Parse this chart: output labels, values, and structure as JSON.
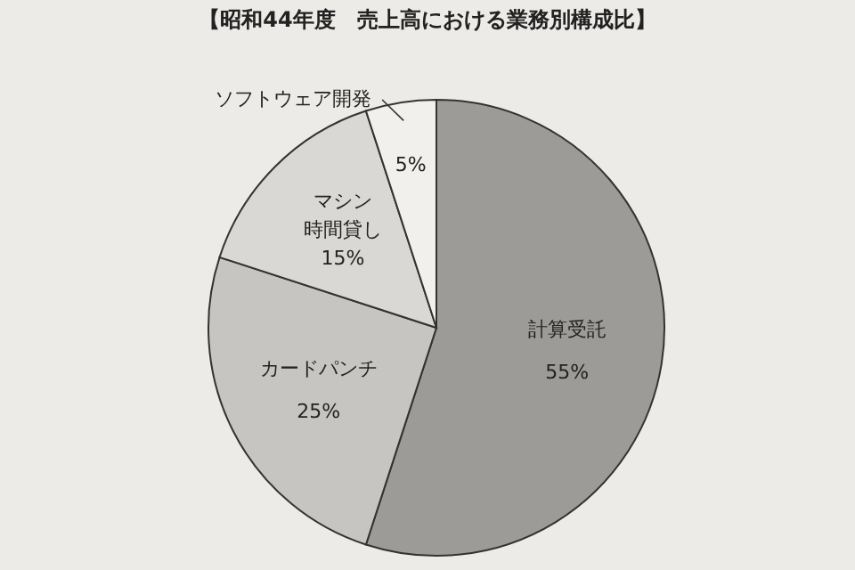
{
  "chart_data": {
    "type": "pie",
    "title": "【昭和44年度　売上高における業務別構成比】",
    "categories": [
      "計算受託",
      "カードパンチ",
      "マシン時間貸し",
      "ソフトウェア開発"
    ],
    "values": [
      55,
      25,
      15,
      5
    ],
    "colors": [
      "#9c9b98",
      "#c6c5c1",
      "#d9d8d4",
      "#f1f0ec"
    ],
    "value_labels": [
      "55%",
      "25%",
      "15%",
      "5%"
    ]
  }
}
